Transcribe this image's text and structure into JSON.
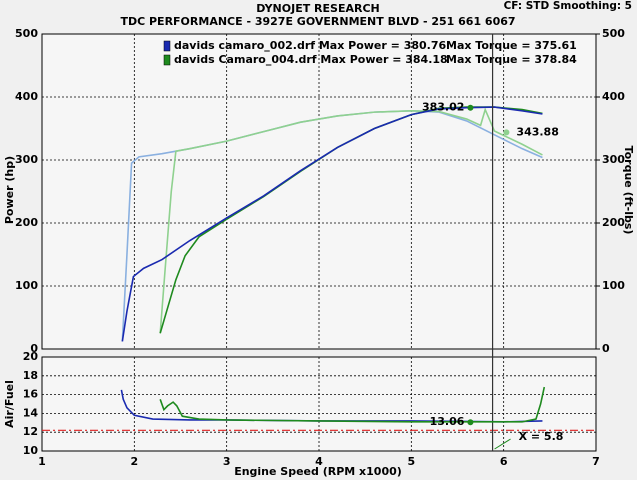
{
  "header": {
    "title": "DYNOJET RESEARCH",
    "subtitle": "TDC PERFORMANCE - 3927E GOVERNMENT BLVD - 251 661 6067",
    "settings": "CF: STD  Smoothing: 5"
  },
  "chart_data": [
    {
      "type": "line",
      "ylabel": "Power (hp)",
      "y2label": "Torque (ft-lbs)",
      "xlim": [
        1,
        7
      ],
      "xticks": [
        1,
        2,
        3,
        4,
        5,
        6,
        7
      ],
      "ylim": [
        0,
        500
      ],
      "yticks": [
        0,
        100,
        200,
        300,
        400,
        500
      ],
      "y2lim": [
        0,
        500
      ],
      "y2ticks": [
        0,
        100,
        200,
        300,
        400,
        500
      ],
      "grid": true,
      "legend": [
        {
          "file": "davids camaro_002.drf Max Power = 380.76",
          "torque": "Max Torque = 375.61",
          "color": "#1a2ab0"
        },
        {
          "file": "davids Camaro_004.drf Max Power = 384.18",
          "torque": "Max Torque = 378.84",
          "color": "#1e8a1e"
        }
      ],
      "series": [
        {
          "color": "#8ab0e0",
          "axis": "y2",
          "x": [
            1.87,
            1.92,
            1.97,
            2.05,
            2.3,
            2.6,
            3.0,
            3.4,
            3.8,
            4.2,
            4.6,
            5.0,
            5.3,
            5.6,
            5.9,
            6.2,
            6.42
          ],
          "values": [
            12,
            150,
            295,
            305,
            310,
            318,
            330,
            345,
            360,
            370,
            376,
            378,
            376,
            362,
            340,
            318,
            304
          ]
        },
        {
          "color": "#8fd18f",
          "axis": "y2",
          "x": [
            2.28,
            2.33,
            2.4,
            2.45,
            2.6,
            3.0,
            3.4,
            3.8,
            4.2,
            4.6,
            5.0,
            5.3,
            5.6,
            5.75,
            5.8,
            5.9,
            6.2,
            6.42
          ],
          "values": [
            25,
            120,
            250,
            314,
            318,
            330,
            345,
            360,
            370,
            376,
            378,
            377,
            365,
            355,
            380,
            346,
            325,
            308
          ]
        },
        {
          "color": "#1e8a1e",
          "x": [
            2.28,
            2.35,
            2.45,
            2.55,
            2.7,
            3.0,
            3.4,
            3.8,
            4.2,
            4.6,
            5.0,
            5.3,
            5.6,
            5.9,
            6.2,
            6.42
          ],
          "values": [
            25,
            60,
            110,
            148,
            178,
            206,
            242,
            282,
            320,
            350,
            372,
            382,
            384,
            384,
            380,
            374
          ]
        },
        {
          "color": "#1a2ab0",
          "x": [
            1.87,
            1.92,
            1.99,
            2.1,
            2.3,
            2.6,
            3.0,
            3.4,
            3.8,
            4.2,
            4.6,
            5.0,
            5.3,
            5.6,
            5.9,
            6.2,
            6.42
          ],
          "values": [
            12,
            60,
            115,
            128,
            142,
            172,
            208,
            243,
            283,
            320,
            350,
            372,
            381,
            383,
            384,
            378,
            373
          ]
        }
      ],
      "markers": [
        {
          "x": 5.64,
          "value": 383.02,
          "color": "#1e8a1e"
        },
        {
          "x": 6.03,
          "value": 343.88,
          "color": "#8fd18f",
          "axis": "y2"
        }
      ]
    },
    {
      "type": "line",
      "ylabel": "Air/Fuel",
      "xlabel": "Engine Speed (RPM x1000)",
      "xlim": [
        1,
        7
      ],
      "xticks": [
        1,
        2,
        3,
        4,
        5,
        6,
        7
      ],
      "ylim": [
        10,
        20
      ],
      "yticks": [
        10,
        12,
        14,
        16,
        18,
        20
      ],
      "grid": true,
      "series": [
        {
          "color": "#1a2ab0",
          "x": [
            1.86,
            1.88,
            1.92,
            2.0,
            2.2,
            2.6,
            3.0,
            4.0,
            5.0,
            6.0,
            6.42
          ],
          "values": [
            16.5,
            15.5,
            14.6,
            13.8,
            13.4,
            13.3,
            13.3,
            13.2,
            13.2,
            13.1,
            13.2
          ]
        },
        {
          "color": "#1e8a1e",
          "x": [
            2.28,
            2.32,
            2.36,
            2.42,
            2.46,
            2.52,
            2.7,
            3.0,
            4.0,
            5.0,
            5.8,
            6.2,
            6.35,
            6.4,
            6.44
          ],
          "values": [
            15.5,
            14.4,
            14.8,
            15.2,
            14.8,
            13.7,
            13.4,
            13.3,
            13.2,
            13.1,
            13.1,
            13.1,
            13.4,
            15,
            16.8
          ]
        }
      ],
      "reference_line": {
        "value": 12.2,
        "color": "#e02020"
      },
      "markers": [
        {
          "x": 5.64,
          "value": 13.06,
          "color": "#1e8a1e"
        }
      ],
      "cursor": {
        "x": 5.88,
        "label": "X = 5.8"
      }
    }
  ]
}
